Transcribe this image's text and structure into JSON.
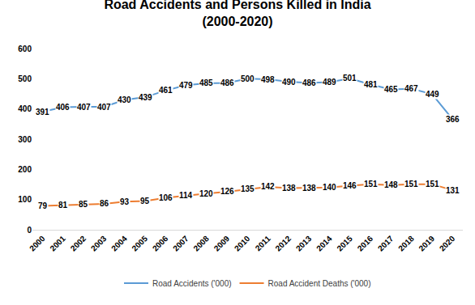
{
  "chart_data": {
    "type": "line",
    "title": "Road Accidents and Persons Killed in India\n(2000-2020)",
    "categories": [
      "2000",
      "2001",
      "2002",
      "2003",
      "2004",
      "2005",
      "2006",
      "2007",
      "2008",
      "2009",
      "2010",
      "2011",
      "2012",
      "2013",
      "2014",
      "2015",
      "2016",
      "2017",
      "2018",
      "2019",
      "2020"
    ],
    "series": [
      {
        "name": "Road Accidents ('000)",
        "color": "#5b9bd5",
        "values": [
          391,
          406,
          407,
          407,
          430,
          439,
          461,
          479,
          485,
          486,
          500,
          498,
          490,
          486,
          489,
          501,
          481,
          465,
          467,
          449,
          366
        ]
      },
      {
        "name": "Road Accident Deaths ('000)",
        "color": "#ed7d31",
        "values": [
          79,
          81,
          85,
          86,
          93,
          95,
          106,
          114,
          120,
          126,
          135,
          142,
          138,
          138,
          140,
          146,
          151,
          148,
          151,
          151,
          131
        ]
      }
    ],
    "ylim": [
      0,
      600
    ],
    "yticks": [
      0,
      100,
      200,
      300,
      400,
      500,
      600
    ],
    "grid": false,
    "legend": "bottom",
    "data_labels": true
  }
}
